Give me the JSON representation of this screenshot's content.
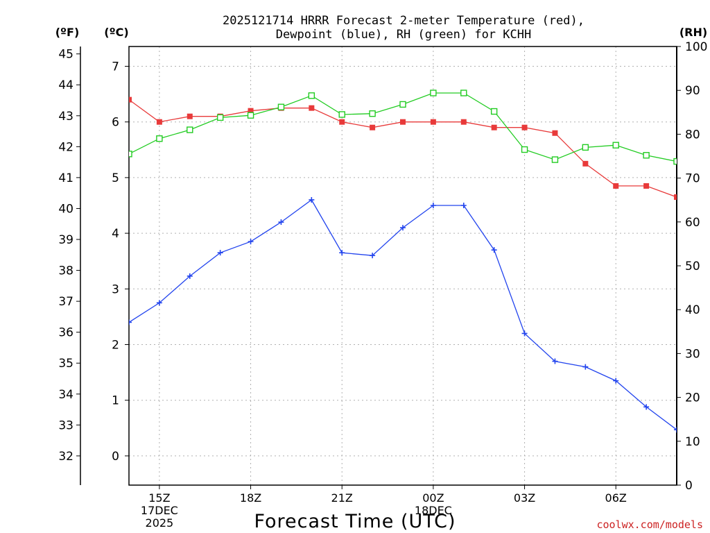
{
  "chart_data": {
    "type": "line",
    "title_line1": "2025121714 HRRR Forecast 2-meter Temperature (red),",
    "title_line2": "Dewpoint (blue), RH (green) for KCHH",
    "xlabel": "Forecast Time (UTC)",
    "watermark": "coolwx.com/models",
    "unit_labels": {
      "fahrenheit": "(ºF)",
      "celsius": "(ºC)",
      "rh": "(RH)"
    },
    "x_hours": [
      14,
      15,
      16,
      17,
      18,
      19,
      20,
      21,
      22,
      23,
      24,
      25,
      26,
      27,
      28,
      29,
      30,
      31,
      32
    ],
    "xlim": [
      14,
      32
    ],
    "x_ticks": [
      {
        "hour": 15,
        "label": "15Z",
        "sub1": "17DEC",
        "sub2": "2025"
      },
      {
        "hour": 18,
        "label": "18Z",
        "sub1": "",
        "sub2": ""
      },
      {
        "hour": 21,
        "label": "21Z",
        "sub1": "",
        "sub2": ""
      },
      {
        "hour": 24,
        "label": "00Z",
        "sub1": "18DEC",
        "sub2": ""
      },
      {
        "hour": 27,
        "label": "03Z",
        "sub1": "",
        "sub2": ""
      },
      {
        "hour": 30,
        "label": "06Z",
        "sub1": "",
        "sub2": ""
      }
    ],
    "celsius_axis": {
      "ylim": [
        -0.5,
        7.3
      ],
      "ticks": [
        "0",
        "1",
        "2",
        "3",
        "4",
        "5",
        "6",
        "7"
      ]
    },
    "fahrenheit_ticks": [
      "32",
      "33",
      "34",
      "35",
      "36",
      "37",
      "38",
      "39",
      "40",
      "41",
      "42",
      "43",
      "44",
      "45"
    ],
    "rh_axis": {
      "ylim": [
        0,
        100
      ],
      "ticks": [
        "0",
        "10",
        "20",
        "30",
        "40",
        "50",
        "60",
        "70",
        "80",
        "90",
        "100"
      ]
    },
    "series": [
      {
        "name": "2-meter Temperature",
        "axis": "celsius",
        "color": "#e83a3a",
        "marker": "filled-square",
        "values": [
          6.4,
          6.0,
          6.1,
          6.1,
          6.2,
          6.25,
          6.25,
          6.0,
          5.9,
          6.0,
          6.0,
          6.0,
          5.9,
          5.9,
          5.8,
          5.25,
          4.85,
          4.85,
          4.65
        ]
      },
      {
        "name": "Dewpoint",
        "axis": "celsius",
        "color": "#2244ee",
        "marker": "plus",
        "values": [
          2.4,
          2.75,
          3.23,
          3.65,
          3.85,
          4.2,
          4.6,
          3.65,
          3.6,
          4.1,
          4.5,
          4.5,
          3.7,
          2.2,
          1.7,
          1.6,
          1.35,
          0.88,
          0.47
        ]
      },
      {
        "name": "RH",
        "axis": "rh",
        "color": "#22cc22",
        "marker": "open-square",
        "values": [
          75.5,
          79.0,
          81.0,
          83.8,
          84.3,
          86.2,
          88.8,
          84.5,
          84.7,
          86.8,
          89.4,
          89.4,
          85.2,
          76.5,
          74.2,
          77.0,
          77.5,
          75.2,
          73.8
        ]
      }
    ]
  }
}
